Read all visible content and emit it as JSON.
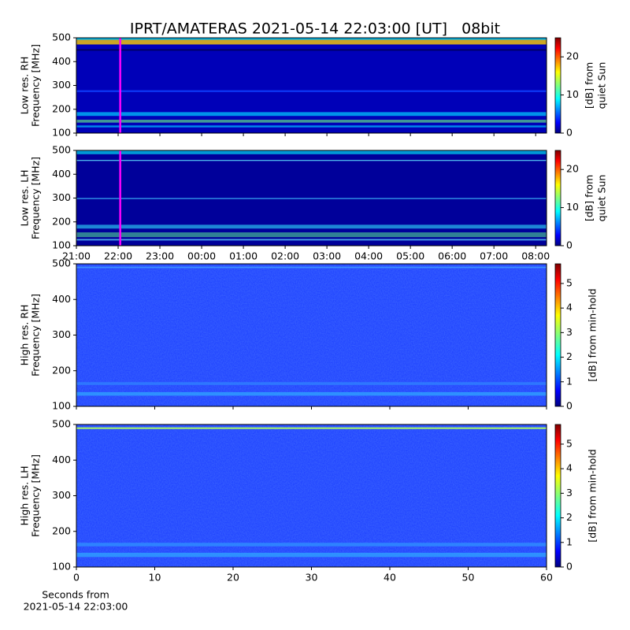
{
  "title": "IPRT/AMATERAS 2021-05-14 22:03:00 [UT]   08bit",
  "chart_data": [
    {
      "type": "heatmap",
      "ylabel": [
        "Low res. RH",
        "Frequency [MHz]"
      ],
      "xlim": [
        21,
        32.26
      ],
      "ylim": [
        100,
        500
      ],
      "yticks": [
        100,
        200,
        300,
        400,
        500
      ],
      "marker_x": 22.05,
      "marker_color": "#ff00ff",
      "clim": [
        0,
        25
      ],
      "cticks": [
        0,
        10,
        20
      ],
      "clabel": [
        "[dB] from",
        "quiet Sun"
      ]
    },
    {
      "type": "heatmap",
      "ylabel": [
        "Low res. LH",
        "Frequency [MHz]"
      ],
      "xlim": [
        21,
        32.26
      ],
      "ylim": [
        100,
        500
      ],
      "yticks": [
        100,
        200,
        300,
        400,
        500
      ],
      "xticks": [
        {
          "value": 21,
          "label": "21:00"
        },
        {
          "value": 22,
          "label": "22:00"
        },
        {
          "value": 23,
          "label": "23:00"
        },
        {
          "value": 24,
          "label": "00:00"
        },
        {
          "value": 25,
          "label": "01:00"
        },
        {
          "value": 26,
          "label": "02:00"
        },
        {
          "value": 27,
          "label": "03:00"
        },
        {
          "value": 28,
          "label": "04:00"
        },
        {
          "value": 29,
          "label": "05:00"
        },
        {
          "value": 30,
          "label": "06:00"
        },
        {
          "value": 31,
          "label": "07:00"
        },
        {
          "value": 32,
          "label": "08:00"
        }
      ],
      "marker_x": 22.05,
      "marker_color": "#ff00ff",
      "clim": [
        0,
        25
      ],
      "cticks": [
        0,
        10,
        20
      ],
      "clabel": [
        "[dB] from",
        "quiet Sun"
      ]
    },
    {
      "type": "heatmap",
      "ylabel": [
        "High res. RH",
        "Frequency [MHz]"
      ],
      "xlim": [
        0,
        60
      ],
      "ylim": [
        100,
        500
      ],
      "yticks": [
        100,
        200,
        300,
        400,
        500
      ],
      "clim": [
        0,
        5.8
      ],
      "cticks": [
        0,
        1,
        2,
        3,
        4,
        5
      ],
      "clabel": [
        "[dB] from min-hold"
      ]
    },
    {
      "type": "heatmap",
      "ylabel": [
        "High res. LH",
        "Frequency [MHz]"
      ],
      "xlim": [
        0,
        60
      ],
      "ylim": [
        100,
        500
      ],
      "yticks": [
        100,
        200,
        300,
        400,
        500
      ],
      "xticks": [
        0,
        10,
        20,
        30,
        40,
        50,
        60
      ],
      "xlabel": [
        "Seconds from",
        "2021-05-14 22:03:00"
      ],
      "clim": [
        0,
        5.8
      ],
      "cticks": [
        0,
        1,
        2,
        3,
        4,
        5
      ],
      "clabel": [
        "[dB] from min-hold"
      ]
    }
  ]
}
